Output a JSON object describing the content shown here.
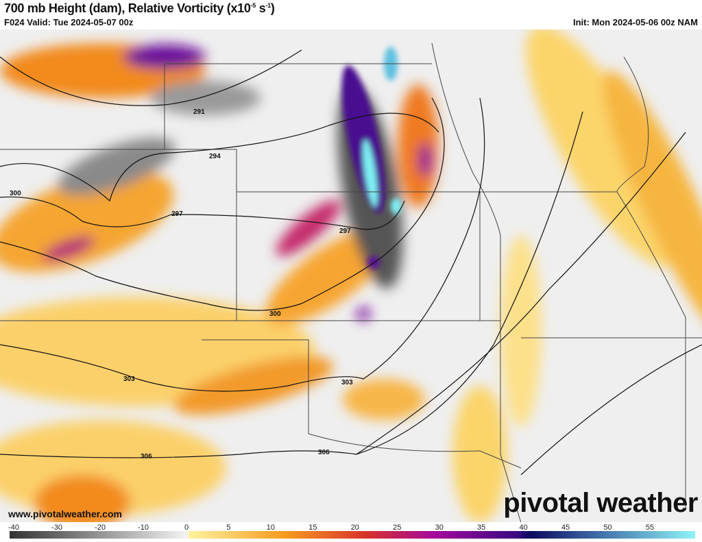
{
  "header": {
    "title": "700 mb Height (dam), Relative Vorticity (x10",
    "title_exp": "-5",
    "title_unit": " s",
    "title_unit_exp": "-1",
    "title_close": ")",
    "valid": "F024 Valid: Tue 2024-05-07 00z",
    "init": "Init: Mon 2024-05-06 00z NAM"
  },
  "map": {
    "contour_labels": [
      "291",
      "294",
      "297",
      "300",
      "300",
      "297",
      "300",
      "303",
      "303",
      "306",
      "306"
    ]
  },
  "footer": {
    "credit": "www.pivotalweather.com",
    "logo": "pivotal weather"
  },
  "colorbar": {
    "ticks": [
      "-40",
      "-30",
      "-20",
      "-10",
      "0",
      "5",
      "10",
      "15",
      "20",
      "25",
      "30",
      "35",
      "40",
      "45",
      "50",
      "55"
    ],
    "colors": {
      "neg_dark": "#333333",
      "neg_light": "#f4f4f4",
      "pos_yellow": "#fff3a0",
      "orange": "#f79c1e",
      "red": "#d8322a",
      "magenta": "#a3099c",
      "purple": "#3a0a80",
      "navy": "#0b0a5e",
      "blue": "#3f6fa8",
      "cyan": "#8ff4f8"
    }
  }
}
